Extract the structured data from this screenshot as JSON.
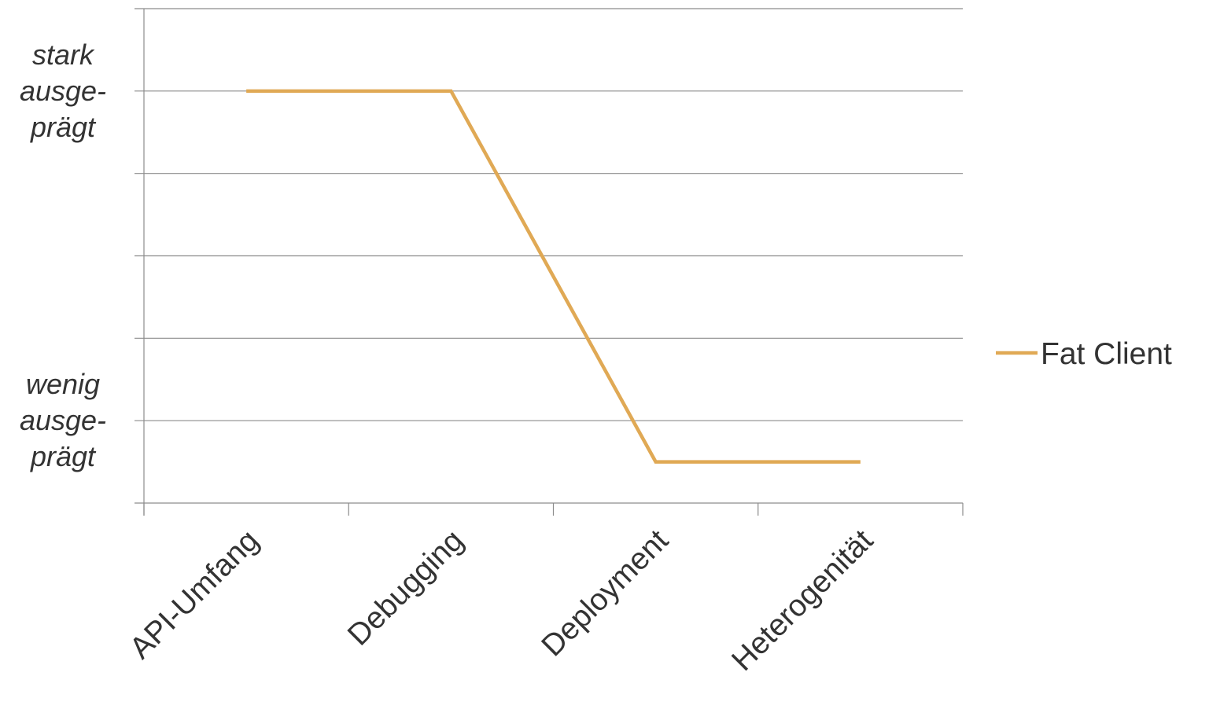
{
  "chart_data": {
    "type": "line",
    "categories": [
      "API-Umfang",
      "Debugging",
      "Deployment",
      "Heterogenität"
    ],
    "series": [
      {
        "name": "Fat Client",
        "values": [
          5,
          5,
          0.5,
          0.5
        ],
        "color": "#E0A955"
      }
    ],
    "ylim": [
      0,
      6
    ],
    "y_level_labels": [
      {
        "value": 5,
        "lines": [
          "stark",
          "ausge-",
          "prägt"
        ]
      },
      {
        "value": 1,
        "lines": [
          "wenig",
          "ausge-",
          "prägt"
        ]
      }
    ],
    "grid": true,
    "grid_color": "#8c8c8c",
    "axis_color": "#8c8c8c",
    "legend_position": "right",
    "title": "",
    "xlabel": "",
    "ylabel": ""
  }
}
